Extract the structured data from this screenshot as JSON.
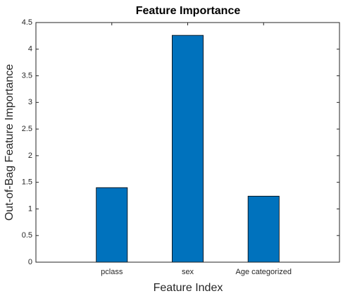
{
  "chart_data": {
    "type": "bar",
    "title": "Feature Importance",
    "xlabel": "Feature Index",
    "ylabel": "Out-of-Bag Feature Importance",
    "categories": [
      "pclass",
      "sex",
      "Age categorized"
    ],
    "values": [
      1.4,
      4.26,
      1.24
    ],
    "color": "#0072bd",
    "ylim": [
      0,
      4.5
    ],
    "yticks": [
      0,
      0.5,
      1,
      1.5,
      2,
      2.5,
      3,
      3.5,
      4,
      4.5
    ],
    "grid": false
  }
}
